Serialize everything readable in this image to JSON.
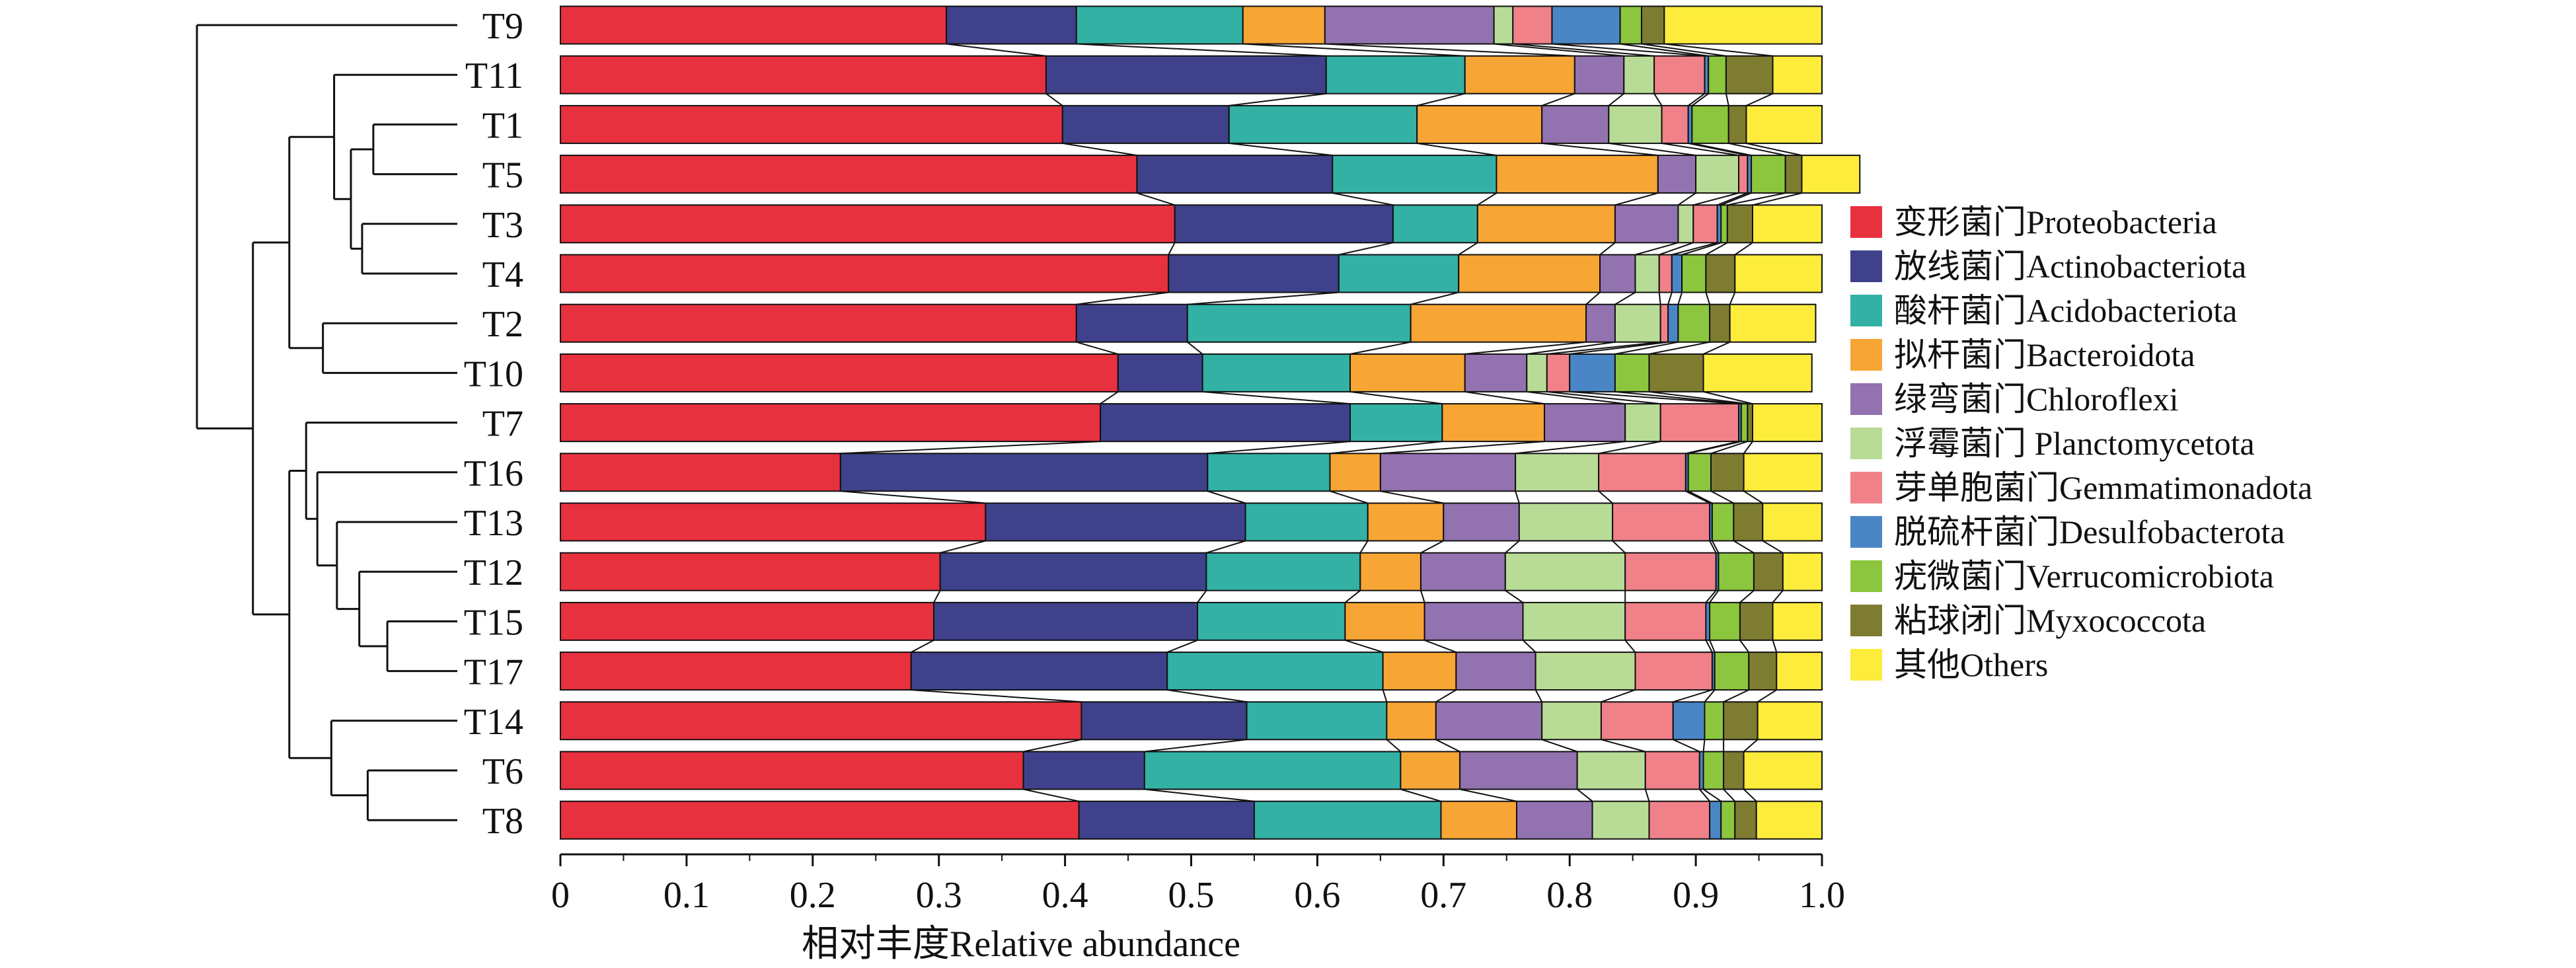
{
  "chart_data": {
    "type": "bar",
    "orientation": "horizontal",
    "stacked": true,
    "xlabel": "相对丰度Relative abundance",
    "xlim": [
      0,
      1.0
    ],
    "xticks": [
      "0",
      "0.1",
      "0.2",
      "0.3",
      "0.4",
      "0.5",
      "0.6",
      "0.7",
      "0.8",
      "0.9",
      "1.0"
    ],
    "grid": false,
    "legend_position": "right",
    "categories": [
      "T9",
      "T11",
      "T1",
      "T5",
      "T3",
      "T4",
      "T2",
      "T10",
      "T7",
      "T16",
      "T13",
      "T12",
      "T15",
      "T17",
      "T14",
      "T6",
      "T8"
    ],
    "series": [
      {
        "name": "变形菌门Proteobacteria",
        "color": "#e8313f",
        "values": [
          0.306,
          0.385,
          0.398,
          0.457,
          0.487,
          0.482,
          0.409,
          0.442,
          0.428,
          0.222,
          0.337,
          0.301,
          0.296,
          0.278,
          0.413,
          0.367,
          0.411
        ]
      },
      {
        "name": "放线菌门Actinobacteriota",
        "color": "#3f428a",
        "values": [
          0.103,
          0.222,
          0.132,
          0.155,
          0.173,
          0.135,
          0.088,
          0.067,
          0.198,
          0.291,
          0.206,
          0.211,
          0.209,
          0.203,
          0.131,
          0.096,
          0.139
        ]
      },
      {
        "name": "酸杆菌门Acidobacteriota",
        "color": "#33b1a5",
        "values": [
          0.132,
          0.11,
          0.149,
          0.13,
          0.067,
          0.095,
          0.177,
          0.117,
          0.073,
          0.097,
          0.097,
          0.122,
          0.117,
          0.171,
          0.111,
          0.203,
          0.148
        ]
      },
      {
        "name": "拟杆菌门Bacteroidota",
        "color": "#f7a534",
        "values": [
          0.065,
          0.087,
          0.099,
          0.128,
          0.109,
          0.112,
          0.139,
          0.091,
          0.081,
          0.04,
          0.06,
          0.048,
          0.063,
          0.058,
          0.039,
          0.047,
          0.06
        ]
      },
      {
        "name": "绿弯菌门Chloroflexi",
        "color": "#9372b0",
        "values": [
          0.134,
          0.039,
          0.053,
          0.03,
          0.05,
          0.028,
          0.023,
          0.049,
          0.064,
          0.107,
          0.06,
          0.067,
          0.078,
          0.063,
          0.084,
          0.093,
          0.06
        ]
      },
      {
        "name": "浮霉菌门 Planctomycetota",
        "color": "#b8dc96",
        "values": [
          0.015,
          0.024,
          0.042,
          0.034,
          0.012,
          0.019,
          0.036,
          0.016,
          0.028,
          0.066,
          0.074,
          0.095,
          0.081,
          0.079,
          0.047,
          0.054,
          0.045
        ]
      },
      {
        "name": "芽单胞菌门Gemmatimonadota",
        "color": "#f08189",
        "values": [
          0.031,
          0.04,
          0.021,
          0.007,
          0.019,
          0.01,
          0.006,
          0.018,
          0.062,
          0.069,
          0.077,
          0.072,
          0.064,
          0.061,
          0.057,
          0.043,
          0.048
        ]
      },
      {
        "name": "脱硫杆菌门Desulfobacterota",
        "color": "#4a86c5",
        "values": [
          0.054,
          0.003,
          0.003,
          0.003,
          0.003,
          0.008,
          0.008,
          0.036,
          0.002,
          0.002,
          0.002,
          0.002,
          0.003,
          0.002,
          0.025,
          0.003,
          0.009
        ]
      },
      {
        "name": "疣微菌门Verrucomicrobiota",
        "color": "#8cc63e",
        "values": [
          0.017,
          0.014,
          0.029,
          0.027,
          0.005,
          0.019,
          0.025,
          0.027,
          0.005,
          0.018,
          0.017,
          0.028,
          0.024,
          0.027,
          0.015,
          0.016,
          0.011
        ]
      },
      {
        "name": "粘球闭门Myxococcota",
        "color": "#7d7c31",
        "values": [
          0.018,
          0.037,
          0.014,
          0.013,
          0.02,
          0.023,
          0.016,
          0.043,
          0.004,
          0.026,
          0.023,
          0.023,
          0.026,
          0.022,
          0.027,
          0.016,
          0.017
        ]
      },
      {
        "name": "其他Others",
        "color": "#fdec3c",
        "values": [
          0.125,
          0.039,
          0.06,
          0.046,
          0.055,
          0.069,
          0.068,
          0.086,
          0.055,
          0.062,
          0.047,
          0.031,
          0.039,
          0.036,
          0.051,
          0.062,
          0.052
        ]
      }
    ],
    "dendrogram": {
      "leaves": [
        "T9",
        "T11",
        "T1",
        "T5",
        "T3",
        "T4",
        "T2",
        "T10",
        "T7",
        "T16",
        "T13",
        "T12",
        "T15",
        "T17",
        "T14",
        "T6",
        "T8"
      ],
      "merges": [
        {
          "left": "T1",
          "right": "T5",
          "height": 0.3
        },
        {
          "left": "T3",
          "right": "T4",
          "height": 0.34
        },
        {
          "left": 0,
          "right": 1,
          "height": 0.38
        },
        {
          "left": "T11",
          "right": 2,
          "height": 0.44
        },
        {
          "left": "T2",
          "right": "T10",
          "height": 0.48
        },
        {
          "left": 3,
          "right": 4,
          "height": 0.6
        },
        {
          "left": "T15",
          "right": "T17",
          "height": 0.25
        },
        {
          "left": "T12",
          "right": 6,
          "height": 0.35
        },
        {
          "left": "T13",
          "right": 7,
          "height": 0.43
        },
        {
          "left": "T16",
          "right": 8,
          "height": 0.5
        },
        {
          "left": "T7",
          "right": 9,
          "height": 0.54
        },
        {
          "left": "T6",
          "right": "T8",
          "height": 0.32
        },
        {
          "left": "T14",
          "right": 11,
          "height": 0.45
        },
        {
          "left": 10,
          "right": 12,
          "height": 0.6
        },
        {
          "left": 5,
          "right": 13,
          "height": 0.73
        },
        {
          "left": "T9",
          "right": 14,
          "height": 0.93
        }
      ]
    }
  }
}
